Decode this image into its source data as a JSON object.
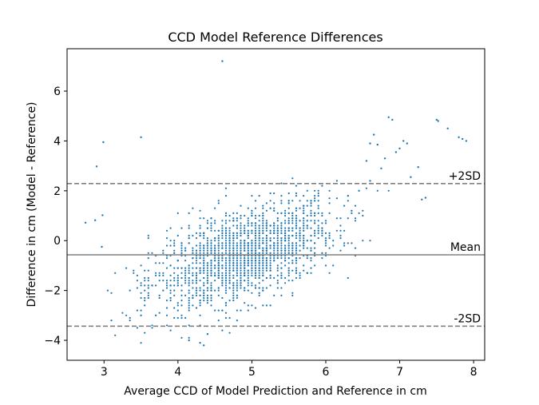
{
  "chart_data": {
    "type": "scatter",
    "title": "CCD Model Reference Differences",
    "xlabel": "Average CCD of Model Prediction and Reference in cm",
    "ylabel": "Difference in cm (Model - Reference)",
    "xlim": [
      2.5,
      8.15
    ],
    "ylim": [
      -4.8,
      7.7
    ],
    "xticks": [
      3,
      4,
      5,
      6,
      7,
      8
    ],
    "yticks": [
      -4,
      -2,
      0,
      2,
      4,
      6
    ],
    "grid": false,
    "reference_lines": [
      {
        "label": "+2SD",
        "y": 2.29,
        "style": "dashed"
      },
      {
        "label": "Mean",
        "y": -0.57,
        "style": "solid"
      },
      {
        "label": "-2SD",
        "y": -3.43,
        "style": "dashed"
      }
    ],
    "point_color": "#1f77b4",
    "line_color": "#808080",
    "outliers": [
      {
        "x": 4.6,
        "y": 7.2
      },
      {
        "x": 3.5,
        "y": 4.15
      },
      {
        "x": 2.99,
        "y": 3.95
      },
      {
        "x": 2.9,
        "y": 2.98
      },
      {
        "x": 2.75,
        "y": 0.72
      },
      {
        "x": 2.88,
        "y": 0.82
      },
      {
        "x": 2.98,
        "y": 1.02
      },
      {
        "x": 2.97,
        "y": -0.25
      },
      {
        "x": 6.85,
        "y": 4.95
      },
      {
        "x": 6.9,
        "y": 4.85
      },
      {
        "x": 7.5,
        "y": 4.85
      },
      {
        "x": 7.52,
        "y": 4.8
      },
      {
        "x": 7.65,
        "y": 4.5
      },
      {
        "x": 7.8,
        "y": 4.15
      },
      {
        "x": 7.85,
        "y": 4.08
      },
      {
        "x": 7.9,
        "y": 4.0
      },
      {
        "x": 7.05,
        "y": 4.0
      },
      {
        "x": 7.1,
        "y": 3.9
      },
      {
        "x": 7.0,
        "y": 3.7
      },
      {
        "x": 6.95,
        "y": 3.55
      },
      {
        "x": 6.65,
        "y": 4.25
      },
      {
        "x": 6.7,
        "y": 3.85
      },
      {
        "x": 6.6,
        "y": 3.9
      },
      {
        "x": 7.25,
        "y": 2.95
      },
      {
        "x": 7.3,
        "y": 1.65
      },
      {
        "x": 7.35,
        "y": 1.72
      },
      {
        "x": 7.15,
        "y": 2.55
      },
      {
        "x": 6.6,
        "y": 2.4
      },
      {
        "x": 6.55,
        "y": 3.2
      },
      {
        "x": 6.45,
        "y": 2.0
      },
      {
        "x": 6.8,
        "y": 3.3
      },
      {
        "x": 6.75,
        "y": 2.9
      },
      {
        "x": 4.35,
        "y": -4.2
      },
      {
        "x": 4.3,
        "y": -4.1
      },
      {
        "x": 4.15,
        "y": -4.0
      },
      {
        "x": 4.4,
        "y": -3.75
      }
    ],
    "cloud": {
      "n": 1800,
      "x_mean": 4.9,
      "x_sd": 0.62,
      "slope": 0.95,
      "intercept": -5.22,
      "residual_sd": 0.88,
      "x_range": [
        2.9,
        7.4
      ],
      "y_range": [
        -4.25,
        4.3
      ]
    }
  }
}
